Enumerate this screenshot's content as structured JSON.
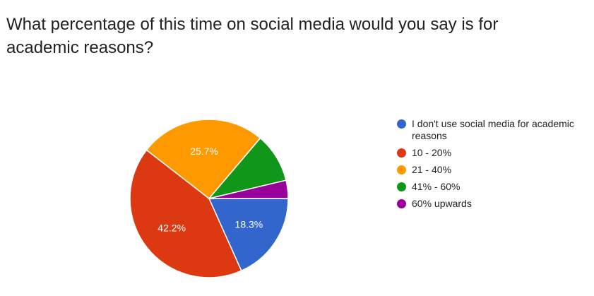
{
  "chart_data": {
    "type": "pie",
    "title": "What percentage of this time on social media would you say is for academic reasons?",
    "categories": [
      "I don't use social media for academic reasons",
      "10 - 20%",
      "21 - 40%",
      "41% - 60%",
      "60% upwards"
    ],
    "values": [
      18.3,
      42.2,
      25.7,
      10.1,
      3.7
    ],
    "data_labels": [
      "18.3%",
      "42.2%",
      "25.7%",
      "",
      ""
    ],
    "colors": [
      "#3366cc",
      "#dc3912",
      "#ff9900",
      "#109618",
      "#990099"
    ],
    "legend_position": "right"
  }
}
